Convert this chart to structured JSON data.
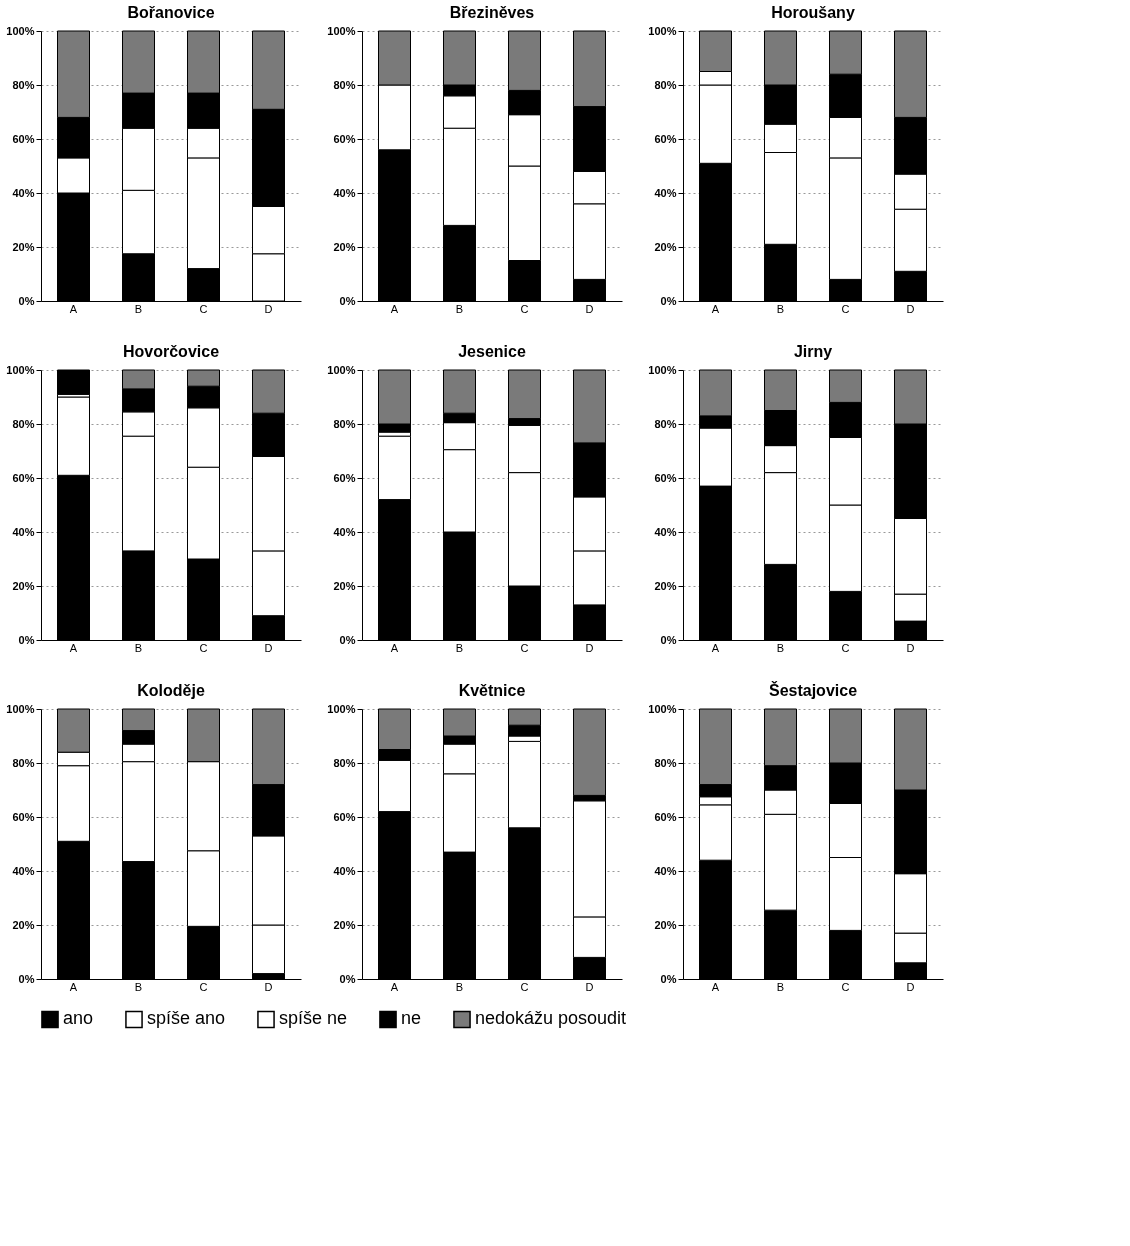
{
  "chart_data": [
    {
      "type": "bar",
      "stacked": true,
      "title": "Bořanovice",
      "categories": [
        "A",
        "B",
        "C",
        "D"
      ],
      "ylim": [
        0,
        100
      ],
      "yticks": [
        {
          "value": 0,
          "label": "0%"
        },
        {
          "value": 20,
          "label": "20%"
        },
        {
          "value": 40,
          "label": "40%"
        },
        {
          "value": 60,
          "label": "60%"
        },
        {
          "value": 80,
          "label": "80%"
        },
        {
          "value": 100,
          "label": "100%"
        }
      ],
      "grid": "y",
      "legend": "bottom",
      "series": [
        {
          "name": "ano",
          "color": "#000000",
          "values": [
            40,
            17.5,
            12,
            0
          ]
        },
        {
          "name": "spíše ano",
          "color": "#ffffff",
          "values": [
            13,
            23.5,
            41,
            17.5
          ]
        },
        {
          "name": "spíše ne",
          "color": "#ffffff",
          "values": [
            0,
            23,
            11,
            17.5
          ]
        },
        {
          "name": "ne",
          "color": "#000000",
          "values": [
            15,
            13,
            13,
            36
          ]
        },
        {
          "name": "nedokážu posoudit",
          "color": "#7a7a7a",
          "values": [
            32,
            23,
            23,
            29
          ]
        }
      ]
    },
    {
      "type": "bar",
      "stacked": true,
      "title": "Březiněves",
      "categories": [
        "A",
        "B",
        "C",
        "D"
      ],
      "ylim": [
        0,
        100
      ],
      "yticks": [
        {
          "value": 0,
          "label": "0%"
        },
        {
          "value": 20,
          "label": "20%"
        },
        {
          "value": 40,
          "label": "40%"
        },
        {
          "value": 60,
          "label": "60%"
        },
        {
          "value": 80,
          "label": "80%"
        },
        {
          "value": 100,
          "label": "100%"
        }
      ],
      "grid": "y",
      "legend": "bottom",
      "series": [
        {
          "name": "ano",
          "color": "#000000",
          "values": [
            56,
            28,
            15,
            8
          ]
        },
        {
          "name": "spíše ano",
          "color": "#ffffff",
          "values": [
            24,
            36,
            35,
            28
          ]
        },
        {
          "name": "spíše ne",
          "color": "#ffffff",
          "values": [
            0,
            12,
            19,
            12
          ]
        },
        {
          "name": "ne",
          "color": "#000000",
          "values": [
            0,
            4,
            9,
            24
          ]
        },
        {
          "name": "nedokážu posoudit",
          "color": "#7a7a7a",
          "values": [
            20,
            20,
            22,
            28
          ]
        }
      ]
    },
    {
      "type": "bar",
      "stacked": true,
      "title": "Horoušany",
      "categories": [
        "A",
        "B",
        "C",
        "D"
      ],
      "ylim": [
        0,
        100
      ],
      "yticks": [
        {
          "value": 0,
          "label": "0%"
        },
        {
          "value": 20,
          "label": "20%"
        },
        {
          "value": 40,
          "label": "40%"
        },
        {
          "value": 60,
          "label": "60%"
        },
        {
          "value": 80,
          "label": "80%"
        },
        {
          "value": 100,
          "label": "100%"
        }
      ],
      "grid": "y",
      "legend": "bottom",
      "series": [
        {
          "name": "ano",
          "color": "#000000",
          "values": [
            51,
            21,
            8,
            11
          ]
        },
        {
          "name": "spíše ano",
          "color": "#ffffff",
          "values": [
            29,
            34,
            45,
            23
          ]
        },
        {
          "name": "spíše ne",
          "color": "#ffffff",
          "values": [
            5,
            10.5,
            15,
            13
          ]
        },
        {
          "name": "ne",
          "color": "#000000",
          "values": [
            0,
            14.5,
            16,
            21
          ]
        },
        {
          "name": "nedokážu posoudit",
          "color": "#7a7a7a",
          "values": [
            15,
            20,
            16,
            32
          ]
        }
      ]
    },
    {
      "type": "bar",
      "stacked": true,
      "title": "Hovorčovice",
      "categories": [
        "A",
        "B",
        "C",
        "D"
      ],
      "ylim": [
        0,
        100
      ],
      "yticks": [
        {
          "value": 0,
          "label": "0%"
        },
        {
          "value": 20,
          "label": "20%"
        },
        {
          "value": 40,
          "label": "40%"
        },
        {
          "value": 60,
          "label": "60%"
        },
        {
          "value": 80,
          "label": "80%"
        },
        {
          "value": 100,
          "label": "100%"
        }
      ],
      "grid": "y",
      "legend": "bottom",
      "series": [
        {
          "name": "ano",
          "color": "#000000",
          "values": [
            61,
            33,
            30,
            9
          ]
        },
        {
          "name": "spíše ano",
          "color": "#ffffff",
          "values": [
            29,
            42.5,
            34,
            24
          ]
        },
        {
          "name": "spíše ne",
          "color": "#ffffff",
          "values": [
            1,
            9,
            22,
            35
          ]
        },
        {
          "name": "ne",
          "color": "#000000",
          "values": [
            9,
            8.5,
            8,
            16
          ]
        },
        {
          "name": "nedokážu posoudit",
          "color": "#7a7a7a",
          "values": [
            0,
            7,
            6,
            16
          ]
        }
      ]
    },
    {
      "type": "bar",
      "stacked": true,
      "title": "Jesenice",
      "categories": [
        "A",
        "B",
        "C",
        "D"
      ],
      "ylim": [
        0,
        100
      ],
      "yticks": [
        {
          "value": 0,
          "label": "0%"
        },
        {
          "value": 20,
          "label": "20%"
        },
        {
          "value": 40,
          "label": "40%"
        },
        {
          "value": 60,
          "label": "60%"
        },
        {
          "value": 80,
          "label": "80%"
        },
        {
          "value": 100,
          "label": "100%"
        }
      ],
      "grid": "y",
      "legend": "bottom",
      "series": [
        {
          "name": "ano",
          "color": "#000000",
          "values": [
            52,
            40,
            20,
            13
          ]
        },
        {
          "name": "spíše ano",
          "color": "#ffffff",
          "values": [
            23.5,
            30.5,
            42,
            20
          ]
        },
        {
          "name": "spíše ne",
          "color": "#ffffff",
          "values": [
            1.5,
            10,
            17.5,
            20
          ]
        },
        {
          "name": "ne",
          "color": "#000000",
          "values": [
            3,
            3.5,
            2.5,
            20
          ]
        },
        {
          "name": "nedokážu posoudit",
          "color": "#7a7a7a",
          "values": [
            20,
            16,
            18,
            27
          ]
        }
      ]
    },
    {
      "type": "bar",
      "stacked": true,
      "title": "Jirny",
      "categories": [
        "A",
        "B",
        "C",
        "D"
      ],
      "ylim": [
        0,
        100
      ],
      "yticks": [
        {
          "value": 0,
          "label": "0%"
        },
        {
          "value": 20,
          "label": "20%"
        },
        {
          "value": 40,
          "label": "40%"
        },
        {
          "value": 60,
          "label": "60%"
        },
        {
          "value": 80,
          "label": "80%"
        },
        {
          "value": 100,
          "label": "100%"
        }
      ],
      "grid": "y",
      "legend": "bottom",
      "series": [
        {
          "name": "ano",
          "color": "#000000",
          "values": [
            57,
            28,
            18,
            7
          ]
        },
        {
          "name": "spíše ano",
          "color": "#ffffff",
          "values": [
            21.5,
            34,
            32,
            10
          ]
        },
        {
          "name": "spíše ne",
          "color": "#ffffff",
          "values": [
            0,
            10,
            25,
            28
          ]
        },
        {
          "name": "ne",
          "color": "#000000",
          "values": [
            4.5,
            13,
            13,
            35
          ]
        },
        {
          "name": "nedokážu posoudit",
          "color": "#7a7a7a",
          "values": [
            17,
            15,
            12,
            20
          ]
        }
      ]
    },
    {
      "type": "bar",
      "stacked": true,
      "title": "Koloděje",
      "categories": [
        "A",
        "B",
        "C",
        "D"
      ],
      "ylim": [
        0,
        100
      ],
      "yticks": [
        {
          "value": 0,
          "label": "0%"
        },
        {
          "value": 20,
          "label": "20%"
        },
        {
          "value": 40,
          "label": "40%"
        },
        {
          "value": 60,
          "label": "60%"
        },
        {
          "value": 80,
          "label": "80%"
        },
        {
          "value": 100,
          "label": "100%"
        }
      ],
      "grid": "y",
      "legend": "bottom",
      "series": [
        {
          "name": "ano",
          "color": "#000000",
          "values": [
            51,
            43.5,
            19.5,
            2
          ]
        },
        {
          "name": "spíše ano",
          "color": "#ffffff",
          "values": [
            28,
            37,
            28,
            18
          ]
        },
        {
          "name": "spíše ne",
          "color": "#ffffff",
          "values": [
            5,
            6.5,
            33,
            33
          ]
        },
        {
          "name": "ne",
          "color": "#000000",
          "values": [
            0,
            5,
            0,
            19
          ]
        },
        {
          "name": "nedokážu posoudit",
          "color": "#7a7a7a",
          "values": [
            16,
            8,
            19.5,
            28
          ]
        }
      ]
    },
    {
      "type": "bar",
      "stacked": true,
      "title": "Květnice",
      "categories": [
        "A",
        "B",
        "C",
        "D"
      ],
      "ylim": [
        0,
        100
      ],
      "yticks": [
        {
          "value": 0,
          "label": "0%"
        },
        {
          "value": 20,
          "label": "20%"
        },
        {
          "value": 40,
          "label": "40%"
        },
        {
          "value": 60,
          "label": "60%"
        },
        {
          "value": 80,
          "label": "80%"
        },
        {
          "value": 100,
          "label": "100%"
        }
      ],
      "grid": "y",
      "legend": "bottom",
      "series": [
        {
          "name": "ano",
          "color": "#000000",
          "values": [
            62,
            47,
            56,
            8
          ]
        },
        {
          "name": "spíše ano",
          "color": "#ffffff",
          "values": [
            19,
            29,
            32,
            15
          ]
        },
        {
          "name": "spíše ne",
          "color": "#ffffff",
          "values": [
            0,
            11,
            2,
            43
          ]
        },
        {
          "name": "ne",
          "color": "#000000",
          "values": [
            4,
            3,
            4,
            2
          ]
        },
        {
          "name": "nedokážu posoudit",
          "color": "#7a7a7a",
          "values": [
            15,
            10,
            6,
            32
          ]
        }
      ]
    },
    {
      "type": "bar",
      "stacked": true,
      "title": "Šestajovice",
      "categories": [
        "A",
        "B",
        "C",
        "D"
      ],
      "ylim": [
        0,
        100
      ],
      "yticks": [
        {
          "value": 0,
          "label": "0%"
        },
        {
          "value": 20,
          "label": "20%"
        },
        {
          "value": 40,
          "label": "40%"
        },
        {
          "value": 60,
          "label": "60%"
        },
        {
          "value": 80,
          "label": "80%"
        },
        {
          "value": 100,
          "label": "100%"
        }
      ],
      "grid": "y",
      "legend": "bottom",
      "series": [
        {
          "name": "ano",
          "color": "#000000",
          "values": [
            44,
            25.5,
            18,
            6
          ]
        },
        {
          "name": "spíše ano",
          "color": "#ffffff",
          "values": [
            20.5,
            35.5,
            27,
            11
          ]
        },
        {
          "name": "spíše ne",
          "color": "#ffffff",
          "values": [
            3,
            9,
            20,
            22
          ]
        },
        {
          "name": "ne",
          "color": "#000000",
          "values": [
            4.5,
            9,
            15,
            31
          ]
        },
        {
          "name": "nedokážu posoudit",
          "color": "#7a7a7a",
          "values": [
            28,
            21,
            20,
            30
          ]
        }
      ]
    }
  ]
}
